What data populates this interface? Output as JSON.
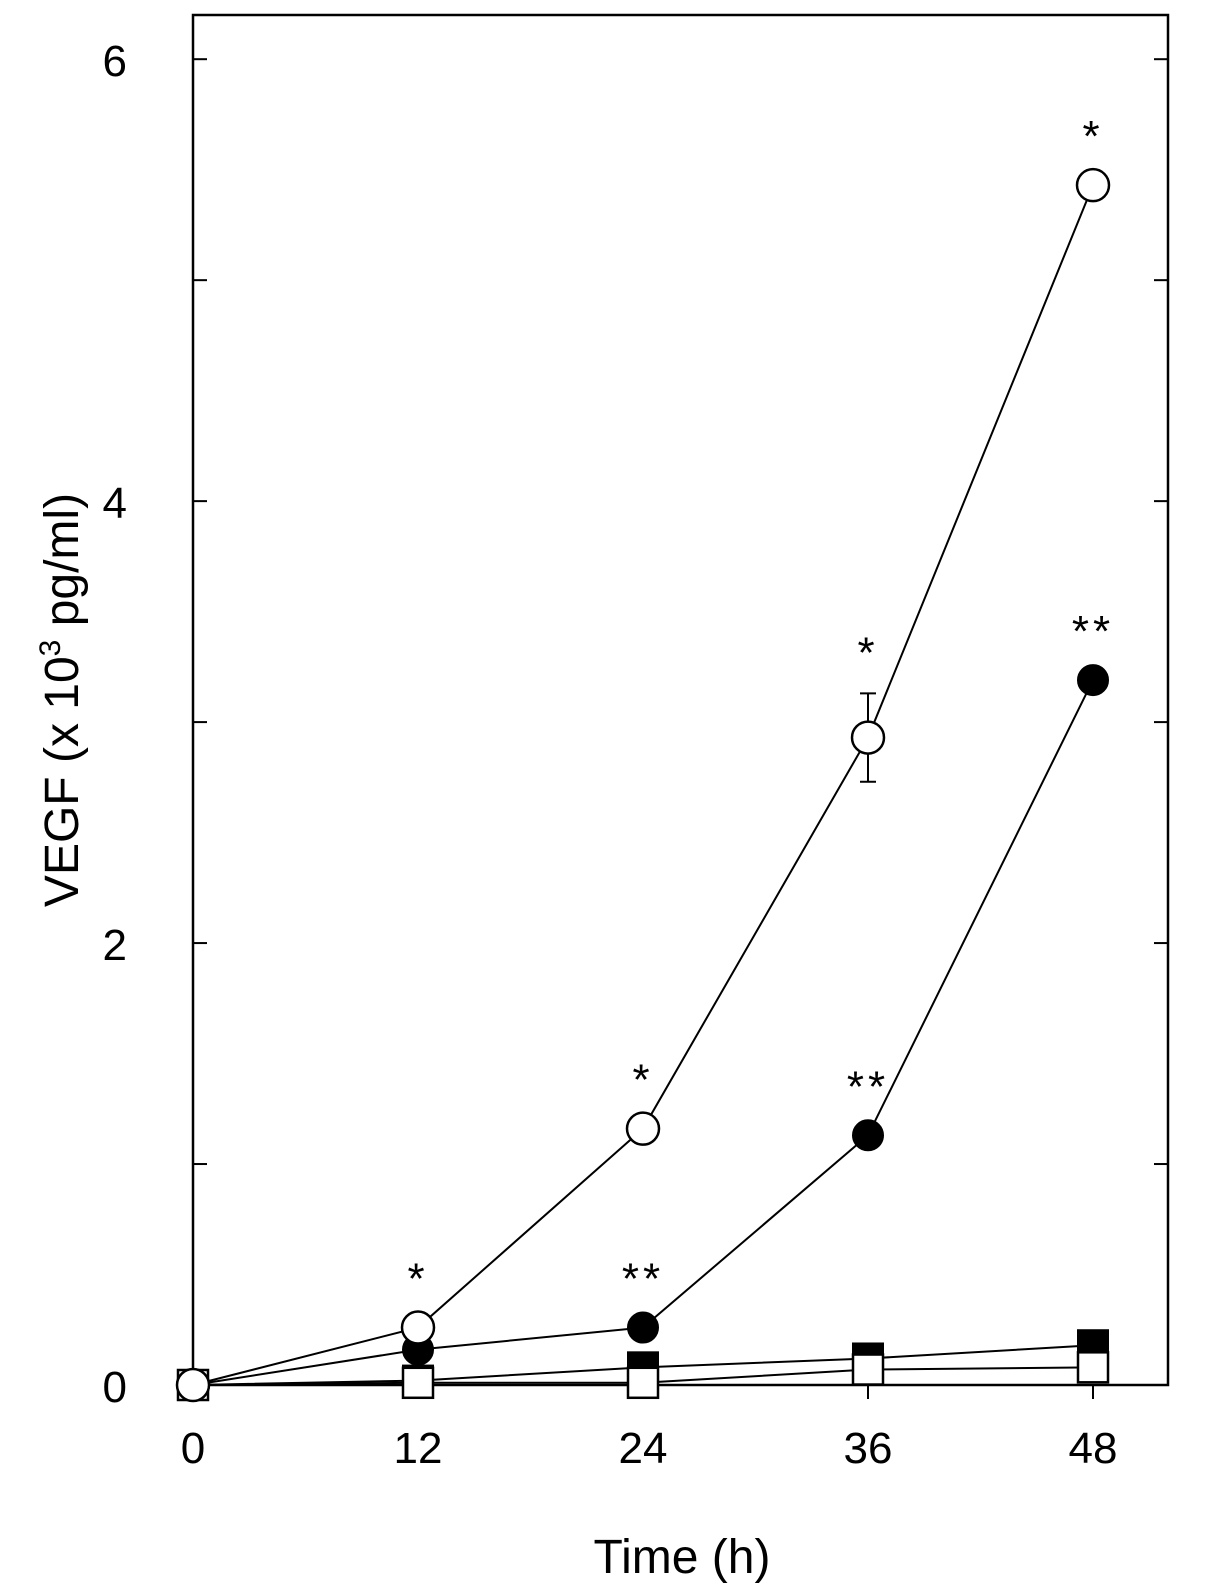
{
  "chart_data": {
    "type": "line",
    "title": "",
    "xlabel": "Time (h)",
    "ylabel_main": "VEGF (x 10",
    "ylabel_sup": "3",
    "ylabel_tail": " pg/ml)",
    "x": [
      0,
      12,
      24,
      36,
      48
    ],
    "x_tick_labels": [
      "0",
      "12",
      "24",
      "36",
      "48"
    ],
    "xlim": [
      0,
      52
    ],
    "y_ticks_labeled": [
      0,
      2,
      4,
      6
    ],
    "y_tick_labels": [
      "0",
      "2",
      "4",
      "6"
    ],
    "y_ticks_minor": [
      1,
      3,
      5
    ],
    "ylim": [
      0,
      6.2
    ],
    "grid": false,
    "legend": "none",
    "series": [
      {
        "marker": "open-circle",
        "values": [
          0,
          0.26,
          1.16,
          2.93,
          5.43
        ],
        "error": [
          0,
          0,
          0,
          0.2,
          0
        ],
        "annotations": [
          "",
          "*",
          "*",
          "*",
          "*"
        ]
      },
      {
        "marker": "filled-circle",
        "values": [
          0,
          0.16,
          0.26,
          1.13,
          3.19
        ],
        "error": [
          0,
          0,
          0,
          0,
          0
        ],
        "annotations": [
          "",
          "",
          "**",
          "**",
          "**"
        ]
      },
      {
        "marker": "filled-square",
        "values": [
          0,
          0.02,
          0.08,
          0.12,
          0.18
        ],
        "error": [
          0,
          0,
          0,
          0,
          0
        ],
        "annotations": [
          "",
          "",
          "",
          "",
          ""
        ]
      },
      {
        "marker": "open-square",
        "values": [
          0,
          0.01,
          0.01,
          0.07,
          0.08
        ],
        "error": [
          0,
          0,
          0,
          0,
          0
        ],
        "annotations": [
          "",
          "",
          "",
          "",
          ""
        ]
      }
    ],
    "colors": {
      "line": "#000000",
      "fill": "#ffffff",
      "background": "#ffffff"
    }
  }
}
